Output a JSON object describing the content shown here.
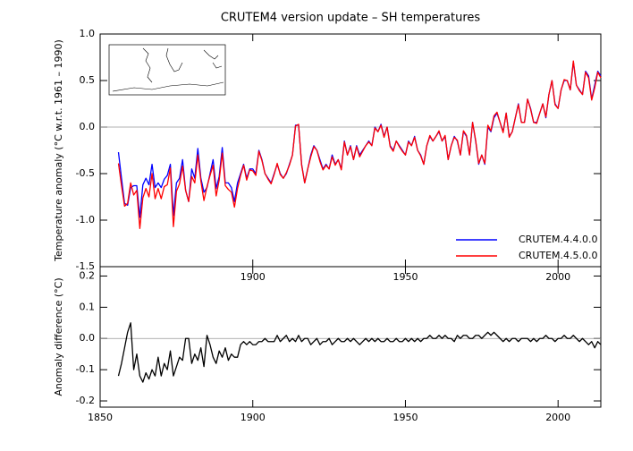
{
  "chart_data": [
    {
      "type": "line",
      "title": "CRUTEM4 version update – SH temperatures",
      "y_label": "Temperature anomaly (°C w.r.t. 1961 – 1990)",
      "x": [
        1856,
        1857,
        1858,
        1859,
        1860,
        1861,
        1862,
        1863,
        1864,
        1865,
        1866,
        1867,
        1868,
        1869,
        1870,
        1871,
        1872,
        1873,
        1874,
        1875,
        1876,
        1877,
        1878,
        1879,
        1880,
        1881,
        1882,
        1883,
        1884,
        1885,
        1886,
        1887,
        1888,
        1889,
        1890,
        1891,
        1892,
        1893,
        1894,
        1895,
        1896,
        1897,
        1898,
        1899,
        1900,
        1901,
        1902,
        1903,
        1904,
        1905,
        1906,
        1907,
        1908,
        1909,
        1910,
        1911,
        1912,
        1913,
        1914,
        1915,
        1916,
        1917,
        1918,
        1919,
        1920,
        1921,
        1922,
        1923,
        1924,
        1925,
        1926,
        1927,
        1928,
        1929,
        1930,
        1931,
        1932,
        1933,
        1934,
        1935,
        1936,
        1937,
        1938,
        1939,
        1940,
        1941,
        1942,
        1943,
        1944,
        1945,
        1946,
        1947,
        1948,
        1949,
        1950,
        1951,
        1952,
        1953,
        1954,
        1955,
        1956,
        1957,
        1958,
        1959,
        1960,
        1961,
        1962,
        1963,
        1964,
        1965,
        1966,
        1967,
        1968,
        1969,
        1970,
        1971,
        1972,
        1973,
        1974,
        1975,
        1976,
        1977,
        1978,
        1979,
        1980,
        1981,
        1982,
        1983,
        1984,
        1985,
        1986,
        1987,
        1988,
        1989,
        1990,
        1991,
        1992,
        1993,
        1994,
        1995,
        1996,
        1997,
        1998,
        1999,
        2000,
        2001,
        2002,
        2003,
        2004,
        2005,
        2006,
        2007,
        2008,
        2009,
        2010,
        2011,
        2012,
        2013,
        2014
      ],
      "series": [
        {
          "name": "CRUTEM.4.4.0.0",
          "color": "#0000ff",
          "values": [
            -0.27,
            -0.55,
            -0.82,
            -0.84,
            -0.65,
            -0.63,
            -0.63,
            -0.97,
            -0.62,
            -0.55,
            -0.62,
            -0.4,
            -0.65,
            -0.6,
            -0.65,
            -0.56,
            -0.52,
            -0.4,
            -0.95,
            -0.6,
            -0.55,
            -0.35,
            -0.68,
            -0.8,
            -0.45,
            -0.55,
            -0.23,
            -0.55,
            -0.7,
            -0.65,
            -0.5,
            -0.35,
            -0.66,
            -0.53,
            -0.22,
            -0.6,
            -0.6,
            -0.65,
            -0.8,
            -0.6,
            -0.5,
            -0.4,
            -0.55,
            -0.45,
            -0.45,
            -0.5,
            -0.25,
            -0.35,
            -0.5,
            -0.55,
            -0.6,
            -0.5,
            -0.4,
            -0.5,
            -0.55,
            -0.5,
            -0.4,
            -0.3,
            0.02,
            0.02,
            -0.4,
            -0.6,
            -0.45,
            -0.3,
            -0.2,
            -0.25,
            -0.35,
            -0.45,
            -0.4,
            -0.45,
            -0.3,
            -0.4,
            -0.35,
            -0.45,
            -0.15,
            -0.3,
            -0.2,
            -0.35,
            -0.2,
            -0.3,
            -0.25,
            -0.2,
            -0.15,
            -0.2,
            0.0,
            -0.05,
            0.03,
            -0.1,
            0.0,
            -0.2,
            -0.25,
            -0.15,
            -0.2,
            -0.25,
            -0.3,
            -0.15,
            -0.2,
            -0.1,
            -0.25,
            -0.3,
            -0.4,
            -0.2,
            -0.1,
            -0.15,
            -0.1,
            -0.05,
            -0.15,
            -0.1,
            -0.35,
            -0.2,
            -0.1,
            -0.15,
            -0.3,
            -0.05,
            -0.1,
            -0.3,
            0.05,
            -0.15,
            -0.4,
            -0.3,
            -0.4,
            0.0,
            -0.05,
            0.1,
            0.15,
            0.05,
            -0.05,
            0.15,
            -0.1,
            -0.05,
            0.1,
            0.25,
            0.05,
            0.05,
            0.3,
            0.2,
            0.05,
            0.05,
            0.15,
            0.25,
            0.1,
            0.35,
            0.5,
            0.25,
            0.2,
            0.4,
            0.5,
            0.5,
            0.4,
            0.7,
            0.45,
            0.4,
            0.35,
            0.6,
            0.55,
            0.3,
            0.45,
            0.6,
            0.55
          ]
        },
        {
          "name": "CRUTEM.4.5.0.0",
          "color": "#ff0000",
          "values": [
            -0.39,
            -0.63,
            -0.85,
            -0.82,
            -0.6,
            -0.73,
            -0.68,
            -1.09,
            -0.76,
            -0.66,
            -0.75,
            -0.5,
            -0.77,
            -0.66,
            -0.77,
            -0.64,
            -0.62,
            -0.44,
            -1.07,
            -0.69,
            -0.61,
            -0.42,
            -0.68,
            -0.8,
            -0.53,
            -0.6,
            -0.3,
            -0.58,
            -0.79,
            -0.64,
            -0.52,
            -0.41,
            -0.74,
            -0.57,
            -0.28,
            -0.63,
            -0.67,
            -0.7,
            -0.86,
            -0.66,
            -0.52,
            -0.41,
            -0.57,
            -0.46,
            -0.47,
            -0.52,
            -0.26,
            -0.36,
            -0.5,
            -0.56,
            -0.61,
            -0.51,
            -0.39,
            -0.51,
            -0.55,
            -0.49,
            -0.41,
            -0.3,
            0.01,
            0.03,
            -0.41,
            -0.6,
            -0.45,
            -0.32,
            -0.21,
            -0.25,
            -0.37,
            -0.46,
            -0.41,
            -0.45,
            -0.32,
            -0.41,
            -0.35,
            -0.46,
            -0.16,
            -0.3,
            -0.21,
            -0.35,
            -0.21,
            -0.32,
            -0.26,
            -0.2,
            -0.16,
            -0.2,
            -0.01,
            -0.05,
            0.02,
            -0.11,
            0.0,
            -0.21,
            -0.26,
            -0.15,
            -0.21,
            -0.26,
            -0.3,
            -0.16,
            -0.2,
            -0.11,
            -0.25,
            -0.31,
            -0.4,
            -0.2,
            -0.09,
            -0.15,
            -0.1,
            -0.04,
            -0.15,
            -0.09,
            -0.35,
            -0.2,
            -0.11,
            -0.14,
            -0.3,
            -0.04,
            -0.09,
            -0.3,
            0.05,
            -0.14,
            -0.39,
            -0.3,
            -0.39,
            0.02,
            -0.04,
            0.12,
            0.16,
            0.05,
            -0.06,
            0.15,
            -0.11,
            -0.05,
            0.1,
            0.24,
            0.05,
            0.05,
            0.3,
            0.19,
            0.05,
            0.04,
            0.15,
            0.25,
            0.11,
            0.35,
            0.5,
            0.24,
            0.2,
            0.4,
            0.51,
            0.5,
            0.4,
            0.71,
            0.45,
            0.39,
            0.35,
            0.59,
            0.53,
            0.29,
            0.42,
            0.59,
            0.53
          ]
        }
      ],
      "xlim": [
        1850,
        2014
      ],
      "xticks": [
        1900,
        1950,
        2000
      ],
      "ylim": [
        -1.5,
        1.0
      ],
      "yticks": [
        {
          "value": 1.0,
          "label": "1.0"
        },
        0.5,
        {
          "value": 0.0,
          "label": "0.0"
        },
        -0.5,
        {
          "value": -1.0,
          "label": "-1.0"
        },
        -1.5
      ],
      "legend": "lower right"
    },
    {
      "type": "line",
      "y_label": "Anomaly difference (°C)",
      "x": [
        1856,
        1857,
        1858,
        1859,
        1860,
        1861,
        1862,
        1863,
        1864,
        1865,
        1866,
        1867,
        1868,
        1869,
        1870,
        1871,
        1872,
        1873,
        1874,
        1875,
        1876,
        1877,
        1878,
        1879,
        1880,
        1881,
        1882,
        1883,
        1884,
        1885,
        1886,
        1887,
        1888,
        1889,
        1890,
        1891,
        1892,
        1893,
        1894,
        1895,
        1896,
        1897,
        1898,
        1899,
        1900,
        1901,
        1902,
        1903,
        1904,
        1905,
        1906,
        1907,
        1908,
        1909,
        1910,
        1911,
        1912,
        1913,
        1914,
        1915,
        1916,
        1917,
        1918,
        1919,
        1920,
        1921,
        1922,
        1923,
        1924,
        1925,
        1926,
        1927,
        1928,
        1929,
        1930,
        1931,
        1932,
        1933,
        1934,
        1935,
        1936,
        1937,
        1938,
        1939,
        1940,
        1941,
        1942,
        1943,
        1944,
        1945,
        1946,
        1947,
        1948,
        1949,
        1950,
        1951,
        1952,
        1953,
        1954,
        1955,
        1956,
        1957,
        1958,
        1959,
        1960,
        1961,
        1962,
        1963,
        1964,
        1965,
        1966,
        1967,
        1968,
        1969,
        1970,
        1971,
        1972,
        1973,
        1974,
        1975,
        1976,
        1977,
        1978,
        1979,
        1980,
        1981,
        1982,
        1983,
        1984,
        1985,
        1986,
        1987,
        1988,
        1989,
        1990,
        1991,
        1992,
        1993,
        1994,
        1995,
        1996,
        1997,
        1998,
        1999,
        2000,
        2001,
        2002,
        2003,
        2004,
        2005,
        2006,
        2007,
        2008,
        2009,
        2010,
        2011,
        2012,
        2013,
        2014
      ],
      "series": [
        {
          "color": "#000000",
          "values": [
            -0.12,
            -0.08,
            -0.03,
            0.02,
            0.05,
            -0.1,
            -0.05,
            -0.12,
            -0.14,
            -0.11,
            -0.13,
            -0.1,
            -0.12,
            -0.06,
            -0.12,
            -0.08,
            -0.1,
            -0.04,
            -0.12,
            -0.09,
            -0.06,
            -0.07,
            0.0,
            0.0,
            -0.08,
            -0.05,
            -0.07,
            -0.03,
            -0.09,
            0.01,
            -0.02,
            -0.06,
            -0.08,
            -0.04,
            -0.06,
            -0.03,
            -0.07,
            -0.05,
            -0.06,
            -0.06,
            -0.02,
            -0.01,
            -0.02,
            -0.01,
            -0.02,
            -0.02,
            -0.01,
            -0.01,
            0.0,
            -0.01,
            -0.01,
            -0.01,
            0.01,
            -0.01,
            0.0,
            0.01,
            -0.01,
            0.0,
            -0.01,
            0.01,
            -0.01,
            0.0,
            0.0,
            -0.02,
            -0.01,
            0.0,
            -0.02,
            -0.01,
            -0.01,
            0.0,
            -0.02,
            -0.01,
            0.0,
            -0.01,
            -0.01,
            0.0,
            -0.01,
            0.0,
            -0.01,
            -0.02,
            -0.01,
            0.0,
            -0.01,
            0.0,
            -0.01,
            0.0,
            -0.01,
            -0.01,
            0.0,
            -0.01,
            -0.01,
            0.0,
            -0.01,
            -0.01,
            0.0,
            -0.01,
            0.0,
            -0.01,
            0.0,
            -0.01,
            0.0,
            0.0,
            0.01,
            0.0,
            0.0,
            0.01,
            0.0,
            0.01,
            0.0,
            0.0,
            -0.01,
            0.01,
            0.0,
            0.01,
            0.01,
            0.0,
            0.0,
            0.01,
            0.01,
            0.0,
            0.01,
            0.02,
            0.01,
            0.02,
            0.01,
            0.0,
            -0.01,
            0.0,
            -0.01,
            0.0,
            0.0,
            -0.01,
            0.0,
            0.0,
            0.0,
            -0.01,
            0.0,
            -0.01,
            0.0,
            0.0,
            0.01,
            0.0,
            0.0,
            -0.01,
            0.0,
            0.0,
            0.01,
            0.0,
            0.0,
            0.01,
            0.0,
            -0.01,
            0.0,
            -0.01,
            -0.02,
            -0.01,
            -0.03,
            -0.01,
            -0.02
          ]
        }
      ],
      "xlim": [
        1850,
        2014
      ],
      "xticks": [
        1850,
        1900,
        1950,
        2000
      ],
      "ylim": [
        -0.22,
        0.23
      ],
      "yticks": [
        0.2,
        0.1,
        {
          "value": 0.0,
          "label": "0.0"
        },
        -0.1,
        -0.2
      ]
    }
  ]
}
